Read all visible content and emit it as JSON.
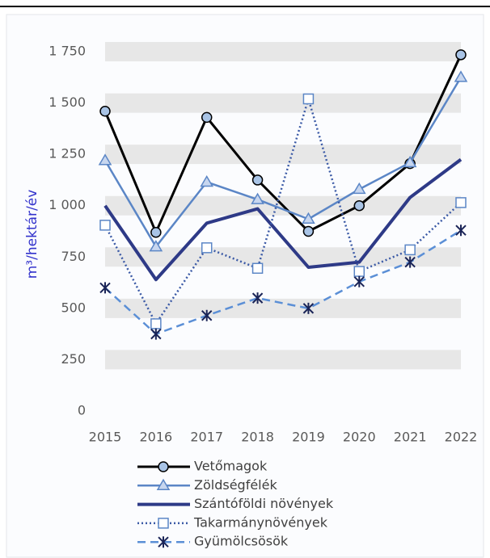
{
  "chart_data": {
    "type": "line",
    "y_label": "m³/hektár/év",
    "categories": [
      "2015",
      "2016",
      "2017",
      "2018",
      "2019",
      "2020",
      "2021",
      "2022"
    ],
    "ylim": [
      0,
      1750
    ],
    "yticks": [
      0,
      250,
      500,
      750,
      {
        "value": 1000,
        "label": "1 000"
      },
      {
        "value": 1250,
        "label": "1 250"
      },
      {
        "value": 1500,
        "label": "1 500"
      },
      {
        "value": 1750,
        "label": "1 750"
      }
    ],
    "grid": true,
    "series": [
      {
        "name": "Vetőmagok",
        "color": "#000000",
        "marker": "circle",
        "dash": "solid",
        "values": [
          1460,
          870,
          1430,
          1125,
          875,
          1000,
          1205,
          1735
        ]
      },
      {
        "name": "Zöldségfélék",
        "color": "#5b86c6",
        "marker": "triangle",
        "dash": "solid",
        "values": [
          1220,
          800,
          1115,
          1030,
          935,
          1080,
          1210,
          1625
        ]
      },
      {
        "name": "Szántóföldi növények",
        "color": "#2e3a87",
        "marker": "none",
        "dash": "thick",
        "values": [
          1000,
          640,
          915,
          985,
          700,
          725,
          1040,
          1225
        ]
      },
      {
        "name": "Takarmánynövények",
        "color": "#3b5aa6",
        "marker": "square",
        "dash": "dotted",
        "values": [
          905,
          425,
          795,
          695,
          1520,
          680,
          785,
          1015
        ]
      },
      {
        "name": "Gyümölcsösök",
        "color": "#5b8fd6",
        "marker": "star",
        "dash": "dashed",
        "values": [
          600,
          375,
          465,
          550,
          500,
          630,
          725,
          880
        ]
      }
    ]
  }
}
